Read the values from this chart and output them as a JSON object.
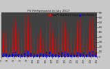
{
  "title": "PV Performance in July 2017",
  "legend_pv": "Total PV Panel Power Output",
  "legend_rad": "Solar Radiation",
  "bg_color": "#c8c8c8",
  "plot_bg": "#404040",
  "grid_color": "#ffffff",
  "pv_color": "#ff0000",
  "rad_color": "#0000ff",
  "title_color": "#000000",
  "ylim_pv": [
    0,
    900
  ],
  "num_days": 31,
  "pv_profile": [
    0,
    0,
    0,
    0,
    0,
    0,
    0,
    0,
    0,
    0,
    0,
    0,
    0,
    0,
    0,
    0,
    0,
    0,
    20,
    80,
    150,
    250,
    350,
    420,
    480,
    520,
    540,
    530,
    500,
    450,
    380,
    300,
    210,
    130,
    70,
    20,
    0,
    0,
    0,
    0,
    0,
    0,
    0,
    0,
    0,
    0,
    0,
    0,
    0,
    0,
    0,
    0,
    0,
    0,
    0,
    0,
    0,
    0,
    0,
    0,
    0,
    0,
    0,
    0,
    0,
    0,
    30,
    100,
    180,
    280,
    390,
    460,
    510,
    540,
    560,
    550,
    510,
    460,
    390,
    310,
    220,
    140,
    80,
    30,
    0,
    0,
    0,
    0,
    0,
    0,
    0,
    0,
    0,
    0,
    0,
    0,
    0,
    0,
    0,
    0,
    0,
    0,
    0,
    0,
    0,
    0,
    0,
    0,
    0,
    0,
    0,
    0,
    0,
    0,
    10,
    50,
    120,
    200,
    300,
    380,
    430,
    460,
    480,
    470,
    440,
    400,
    340,
    270,
    190,
    110,
    50,
    10,
    0,
    0,
    0,
    0,
    0,
    0,
    0,
    0,
    0,
    0,
    0,
    0,
    0,
    0,
    0,
    0,
    0,
    0,
    0,
    0,
    0,
    0,
    0,
    0,
    0,
    0,
    0,
    0,
    0,
    0,
    40,
    120,
    220,
    340,
    460,
    560,
    630,
    680,
    700,
    690,
    650,
    590,
    510,
    410,
    300,
    200,
    110,
    40,
    5,
    0,
    0,
    0,
    0,
    0,
    0,
    0,
    0,
    0,
    0,
    0,
    0,
    0,
    0,
    0,
    0,
    0,
    0,
    0,
    0,
    0,
    0,
    0,
    0,
    0,
    0,
    0,
    0,
    0,
    50,
    140,
    260,
    400,
    540,
    640,
    720,
    780,
    800,
    790,
    750,
    680,
    590,
    470,
    340,
    220,
    120,
    50,
    10,
    0,
    0,
    0,
    0,
    0,
    0,
    0,
    0,
    0,
    0,
    0,
    0,
    0,
    0,
    0,
    0,
    0,
    0,
    0,
    0,
    0,
    0,
    0,
    0,
    0,
    0,
    0,
    0,
    0,
    20,
    90,
    170,
    270,
    380,
    470,
    540,
    590,
    610,
    600,
    560,
    500,
    420,
    330,
    230,
    150,
    80,
    25,
    0,
    0,
    0,
    0,
    0,
    0,
    0,
    0,
    0,
    0,
    0,
    0,
    0,
    0,
    0,
    0,
    0,
    0,
    0,
    0,
    0,
    0,
    0,
    0,
    0,
    0,
    0,
    0,
    0,
    0,
    5,
    40,
    100,
    180,
    270,
    350,
    410,
    450,
    460,
    450,
    420,
    370,
    300,
    220,
    150,
    80,
    30,
    5,
    0,
    0,
    0,
    0,
    0,
    0,
    0,
    0,
    0,
    0,
    0,
    0,
    0,
    0,
    0,
    0,
    0,
    0,
    0,
    0,
    0,
    0,
    0,
    0,
    0,
    0,
    0,
    0,
    0,
    0,
    60,
    160,
    290,
    440,
    590,
    700,
    780,
    840,
    860,
    850,
    800,
    720,
    620,
    490,
    350,
    220,
    120,
    50,
    10,
    0,
    0,
    0,
    0,
    0,
    0,
    0,
    0,
    0,
    0,
    0,
    0,
    0,
    0,
    0,
    0,
    0,
    0,
    0,
    0,
    0,
    0,
    0,
    0,
    0,
    0,
    0,
    0,
    0,
    70,
    180,
    320,
    480,
    630,
    740,
    820,
    870,
    890,
    880,
    830,
    750,
    640,
    510,
    360,
    230,
    130,
    55,
    12,
    0,
    0,
    0,
    0,
    0,
    0,
    0,
    0,
    0,
    0,
    0,
    0,
    0,
    0,
    0,
    0,
    0,
    0,
    0,
    0,
    0,
    0,
    0,
    0,
    0,
    0,
    0,
    0,
    0,
    30,
    110,
    210,
    330,
    450,
    560,
    640,
    700,
    720,
    710,
    670,
    600,
    510,
    400,
    280,
    170,
    90,
    30,
    0,
    0,
    0,
    0,
    0,
    0,
    0,
    0,
    0,
    0,
    0,
    0,
    0,
    0,
    0,
    0,
    0,
    0,
    0,
    0,
    0,
    0,
    0,
    0,
    0,
    0,
    0,
    0,
    0,
    0,
    10,
    60,
    140,
    230,
    330,
    420,
    490,
    540,
    560,
    550,
    510,
    450,
    370,
    280,
    190,
    110,
    50,
    10,
    0,
    0,
    0,
    0,
    0,
    0,
    0,
    0,
    0,
    0,
    0,
    0,
    0,
    0,
    0,
    0,
    0,
    0,
    0,
    0,
    0,
    0,
    0,
    0,
    0,
    0,
    0,
    0,
    0,
    0,
    0,
    30,
    90,
    170,
    260,
    340,
    400,
    440,
    450,
    440,
    410,
    360,
    290,
    210,
    140,
    70,
    25,
    0,
    0,
    0,
    0,
    0,
    0,
    0,
    0,
    0,
    0,
    0,
    0,
    0,
    0,
    0,
    0,
    0,
    0,
    0,
    0,
    0,
    0,
    0,
    0,
    0,
    0,
    0,
    0,
    0,
    0,
    0,
    20,
    80,
    160,
    260,
    370,
    460,
    530,
    580,
    600,
    590,
    550,
    490,
    410,
    320,
    220,
    140,
    70,
    20,
    0,
    0,
    0,
    0,
    0,
    0,
    0,
    0,
    0,
    0,
    0,
    0,
    0,
    0,
    0,
    0,
    0,
    0,
    0,
    0,
    0,
    0,
    0,
    0,
    0,
    0,
    0,
    0,
    0,
    0,
    0,
    20,
    70,
    140,
    220,
    300,
    360,
    400,
    410,
    400,
    370,
    320,
    260,
    190,
    120,
    60,
    15,
    0,
    0,
    0,
    0,
    0,
    0,
    0,
    0,
    0,
    0,
    0,
    0,
    0,
    0,
    0,
    0,
    0,
    0,
    0,
    0,
    0,
    0,
    0,
    0,
    0,
    0,
    0,
    0,
    0,
    0,
    0,
    40,
    130,
    240,
    370,
    500,
    610,
    690,
    750,
    770,
    760,
    710,
    640,
    540,
    420,
    300,
    190,
    100,
    40,
    5,
    0,
    0,
    0,
    0,
    0,
    0,
    0,
    0,
    0,
    0,
    0,
    0,
    0,
    0,
    0,
    0,
    0,
    0,
    0,
    0,
    0,
    0,
    0,
    0,
    0,
    0,
    0,
    0,
    0,
    55,
    150,
    280,
    430,
    580,
    690,
    770,
    830,
    850,
    840,
    790,
    710,
    600,
    470,
    330,
    210,
    115,
    45,
    8,
    0,
    0,
    0,
    0,
    0,
    0,
    0,
    0,
    0,
    0,
    0,
    0,
    0,
    0,
    0,
    0,
    0,
    0,
    0,
    0,
    0,
    0,
    0,
    0,
    0,
    0,
    0,
    0,
    0,
    15,
    70,
    150,
    250,
    360,
    450,
    520,
    570,
    590,
    580,
    540,
    480,
    400,
    310,
    210,
    130,
    65,
    18,
    0,
    0,
    0,
    0,
    0,
    0,
    0,
    0,
    0,
    0,
    0,
    0,
    0,
    0,
    0,
    0,
    0,
    0,
    0,
    0,
    0,
    0,
    0,
    0,
    0,
    0,
    0,
    0,
    0,
    0,
    5,
    35,
    90,
    160,
    240,
    310,
    370,
    410,
    420,
    410,
    380,
    330,
    270,
    200,
    130,
    70,
    25,
    5,
    0,
    0,
    0,
    0,
    0,
    0,
    0,
    0,
    0,
    0,
    0,
    0,
    0,
    0,
    0,
    0,
    0,
    0,
    0,
    0,
    0,
    0,
    0,
    0,
    0,
    0,
    0,
    0,
    0,
    0,
    65,
    170,
    310,
    470,
    620,
    730,
    810,
    860,
    880,
    870,
    820,
    740,
    630,
    500,
    350,
    225,
    125,
    55,
    12,
    0,
    0,
    0,
    0,
    0,
    0,
    0,
    0,
    0,
    0,
    0,
    0,
    0,
    0,
    0,
    0,
    0,
    0,
    0,
    0,
    0,
    0,
    0,
    0,
    0,
    0,
    0,
    0,
    0,
    75,
    190,
    340,
    510,
    660,
    770,
    850,
    900,
    850,
    840,
    790,
    710,
    600,
    480,
    340,
    215,
    118,
    50,
    10,
    0,
    0,
    0,
    0,
    0,
    0,
    0,
    0,
    0,
    0,
    0,
    0,
    0,
    0,
    0,
    0,
    0,
    0,
    0,
    0,
    0,
    0,
    0,
    0,
    0,
    0,
    0,
    0,
    0,
    35,
    120,
    225,
    350,
    470,
    580,
    660,
    720,
    740,
    730,
    680,
    610,
    520,
    410,
    290,
    180,
    95,
    35,
    3,
    0,
    0,
    0,
    0,
    0,
    0,
    0,
    0,
    0,
    0,
    0,
    0,
    0,
    0,
    0,
    0,
    0,
    0,
    0,
    0,
    0,
    0,
    0,
    0,
    0,
    0,
    0,
    0,
    0,
    15,
    65,
    148,
    245,
    348,
    438,
    508,
    558,
    575,
    565,
    525,
    462,
    382,
    292,
    197,
    118,
    52,
    14,
    0,
    0,
    0,
    0,
    0,
    0,
    0,
    0,
    0,
    0,
    0,
    0,
    0,
    0,
    0,
    0,
    0,
    0,
    0,
    0,
    0,
    0,
    0,
    0,
    0,
    0,
    0,
    0,
    0,
    0,
    22,
    88,
    168,
    272,
    382,
    475,
    545,
    595,
    615,
    605,
    562,
    500,
    420,
    330,
    228,
    142,
    75,
    22,
    0,
    0,
    0,
    0,
    0,
    0,
    0,
    0,
    0,
    0,
    0,
    0,
    0,
    0,
    0,
    0,
    0,
    0,
    0,
    0,
    0,
    0,
    0,
    0,
    0,
    0,
    0,
    0,
    0,
    0,
    10,
    45,
    105,
    185,
    272,
    352,
    412,
    452,
    465,
    455,
    422,
    372,
    302,
    222,
    148,
    78,
    28,
    7,
    0,
    0,
    0,
    0,
    0,
    0,
    0,
    0,
    0,
    0,
    0,
    0,
    0,
    0,
    0,
    0,
    0,
    0,
    0,
    0,
    0,
    0,
    0,
    0,
    0,
    0,
    0,
    0,
    0,
    0,
    45,
    135,
    248,
    382,
    512,
    618,
    698,
    758,
    778,
    768,
    718,
    648,
    548,
    432,
    308,
    198,
    108,
    45,
    8,
    0,
    0,
    0,
    0,
    0,
    0,
    0,
    0,
    0,
    0,
    0,
    0,
    0,
    0,
    0,
    0,
    0,
    0,
    0,
    0,
    0,
    0,
    0,
    0,
    0,
    0,
    0,
    0,
    0,
    58,
    152,
    278,
    425,
    568,
    675,
    752,
    808,
    828,
    818,
    768,
    692,
    588,
    462,
    328,
    208,
    115,
    48,
    10,
    0,
    0,
    0,
    0,
    0,
    0,
    0,
    0,
    0,
    0,
    0,
    0,
    0,
    0,
    0,
    0,
    0,
    0,
    0,
    0,
    0,
    0,
    0,
    0,
    0,
    0,
    0,
    0,
    0,
    25,
    98,
    192,
    305,
    422,
    525,
    602,
    655,
    675,
    665,
    622,
    555,
    468,
    368,
    258,
    162,
    85,
    28,
    2,
    0,
    0,
    0,
    0,
    0,
    0,
    0,
    0,
    0,
    0,
    0,
    0,
    0,
    0,
    0,
    0,
    0,
    0,
    0,
    0,
    0,
    0,
    0,
    0,
    0,
    0,
    0,
    0,
    0,
    8,
    42,
    98,
    178,
    262,
    342,
    402,
    442,
    455,
    445,
    412,
    362,
    292,
    212,
    140,
    72,
    25,
    5,
    0,
    0,
    0,
    0,
    0,
    0,
    0,
    0,
    0,
    0,
    0,
    0,
    0,
    0,
    0,
    0,
    0,
    0,
    0,
    0,
    0,
    0,
    0,
    0,
    0,
    0,
    0,
    0,
    0,
    0,
    48,
    138,
    252,
    388,
    518,
    622,
    702,
    762,
    782,
    772,
    722,
    652,
    552,
    435,
    312,
    200,
    110,
    48,
    9,
    0,
    0,
    0,
    0,
    0,
    0,
    0,
    0,
    0,
    0,
    0,
    0,
    0,
    0,
    0,
    0,
    0,
    0,
    0,
    0,
    0,
    0,
    0,
    0,
    0,
    0,
    0,
    0,
    0,
    62,
    158,
    285,
    432,
    575,
    682,
    758,
    812,
    832,
    822,
    772,
    696,
    592,
    466,
    332,
    212,
    118,
    52,
    11,
    0,
    0,
    0,
    0,
    0,
    0,
    0,
    0,
    0,
    0,
    0,
    0,
    0,
    0,
    0,
    0,
    0,
    0,
    0,
    0,
    0,
    0,
    0,
    0,
    0,
    0,
    0,
    0,
    0,
    28,
    102,
    198,
    312,
    428,
    532,
    608,
    662,
    682,
    672,
    628,
    562,
    475,
    375,
    265,
    168,
    88,
    30,
    3,
    0,
    0,
    0,
    0,
    0,
    0,
    0,
    0,
    0,
    0,
    0
  ],
  "rad_scale": 0.09,
  "xtick_labels": [
    "7/1",
    "7/3",
    "7/5",
    "7/7",
    "7/9",
    "7/11",
    "7/13",
    "7/15",
    "7/17",
    "7/19",
    "7/21",
    "7/23",
    "7/25",
    "7/27",
    "7/29",
    "7/31"
  ],
  "ytick_right": [
    "900",
    "800",
    "700",
    "600",
    "500",
    "400",
    "300",
    "200",
    "100",
    "0"
  ],
  "ytick_vals": [
    900,
    800,
    700,
    600,
    500,
    400,
    300,
    200,
    100,
    0
  ]
}
